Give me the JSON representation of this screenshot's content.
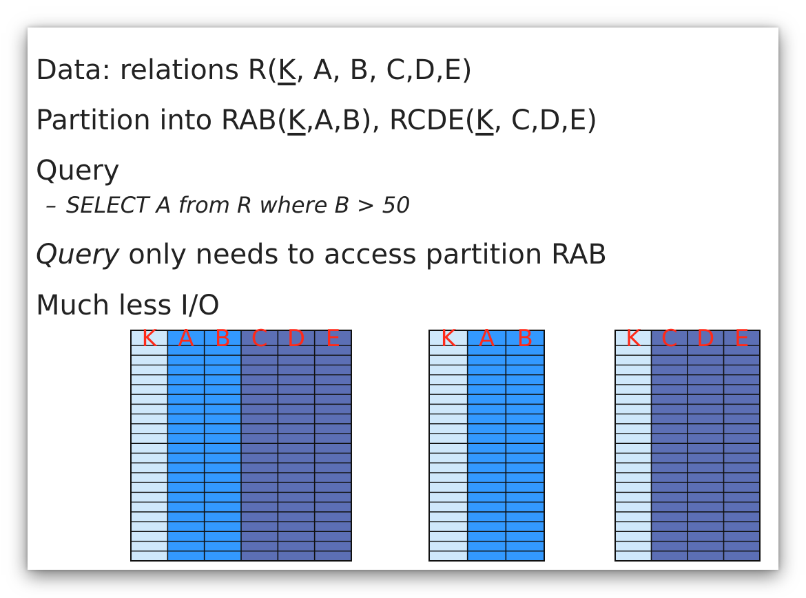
{
  "slide": {
    "line1": {
      "pre": "Data: relations R(",
      "key": "K",
      "post": ", A, B, C,D,E)"
    },
    "line2": {
      "pre": "Partition into RAB(",
      "key1": "K",
      "mid": ",A,B), RCDE(",
      "key2": "K",
      "post": ", C,D,E)"
    },
    "line3": "Query",
    "line4": {
      "dash": "–",
      "text": "SELECT A from R where B > 50"
    },
    "line5": {
      "italic": "Query",
      "rest": " only needs to access partition RAB"
    },
    "line6": "Much less I/O"
  },
  "tables": [
    {
      "name": "R",
      "columns": [
        "K",
        "A",
        "B",
        "C",
        "D",
        "E"
      ],
      "rows": 22,
      "colors": [
        "#cfe8fb",
        "#3399ff",
        "#3399ff",
        "#5c6fb5",
        "#5c6fb5",
        "#5c6fb5"
      ]
    },
    {
      "name": "RAB",
      "columns": [
        "K",
        "A",
        "B"
      ],
      "rows": 22,
      "colors": [
        "#cfe8fb",
        "#3399ff",
        "#3399ff"
      ]
    },
    {
      "name": "RCDE",
      "columns": [
        "K",
        "C",
        "D",
        "E"
      ],
      "rows": 22,
      "colors": [
        "#cfe8fb",
        "#5c6fb5",
        "#5c6fb5",
        "#5c6fb5"
      ]
    }
  ],
  "colors": {
    "header_label": "#ff2a1a",
    "grid_line": "#111111",
    "text": "#222222"
  }
}
